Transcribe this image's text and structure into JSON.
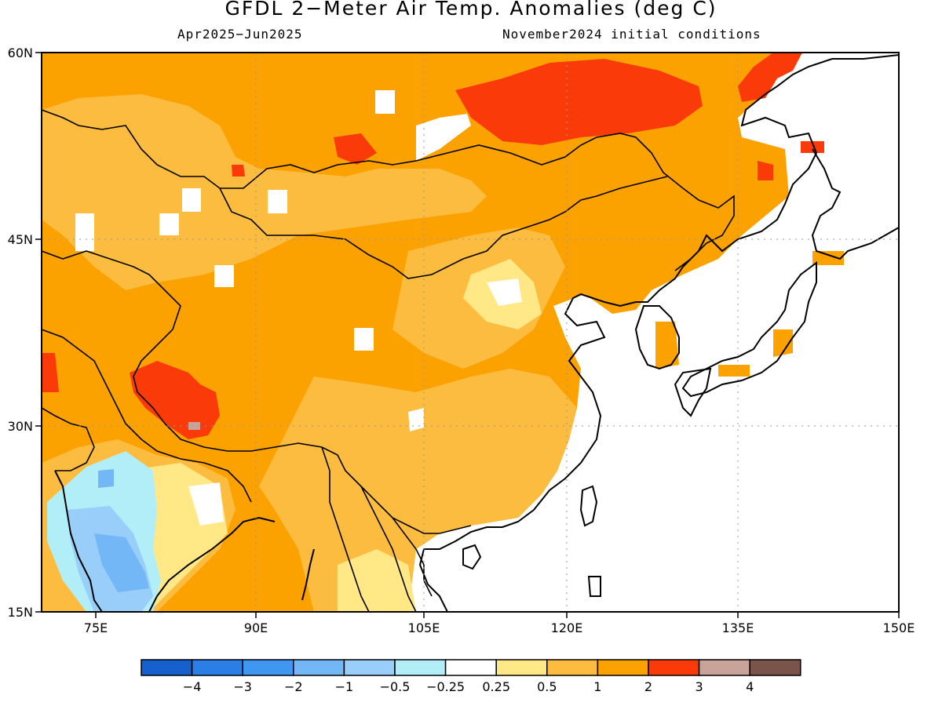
{
  "title": "GFDL 2−Meter Air Temp. Anomalies (deg C)",
  "period": "Apr2025−Jun2025",
  "init": "November2024 initial conditions",
  "lat_labels": [
    "15N",
    "30N",
    "45N",
    "60N"
  ],
  "lon_labels": [
    "75E",
    "90E",
    "105E",
    "120E",
    "135E",
    "150E"
  ],
  "colorbar": {
    "colors": [
      "#1560cc",
      "#2a7ee6",
      "#3f97f1",
      "#74b7f7",
      "#98cef9",
      "#b2eef8",
      "#ffffff",
      "#ffe885",
      "#fcbc3f",
      "#fba100",
      "#fb3a0a",
      "#c9a39a",
      "#7a544a"
    ],
    "labels": [
      "−4",
      "−3",
      "−2",
      "−1",
      "−0.5",
      "−0.25",
      "0.25",
      "0.5",
      "1",
      "2",
      "3",
      "4"
    ]
  }
}
